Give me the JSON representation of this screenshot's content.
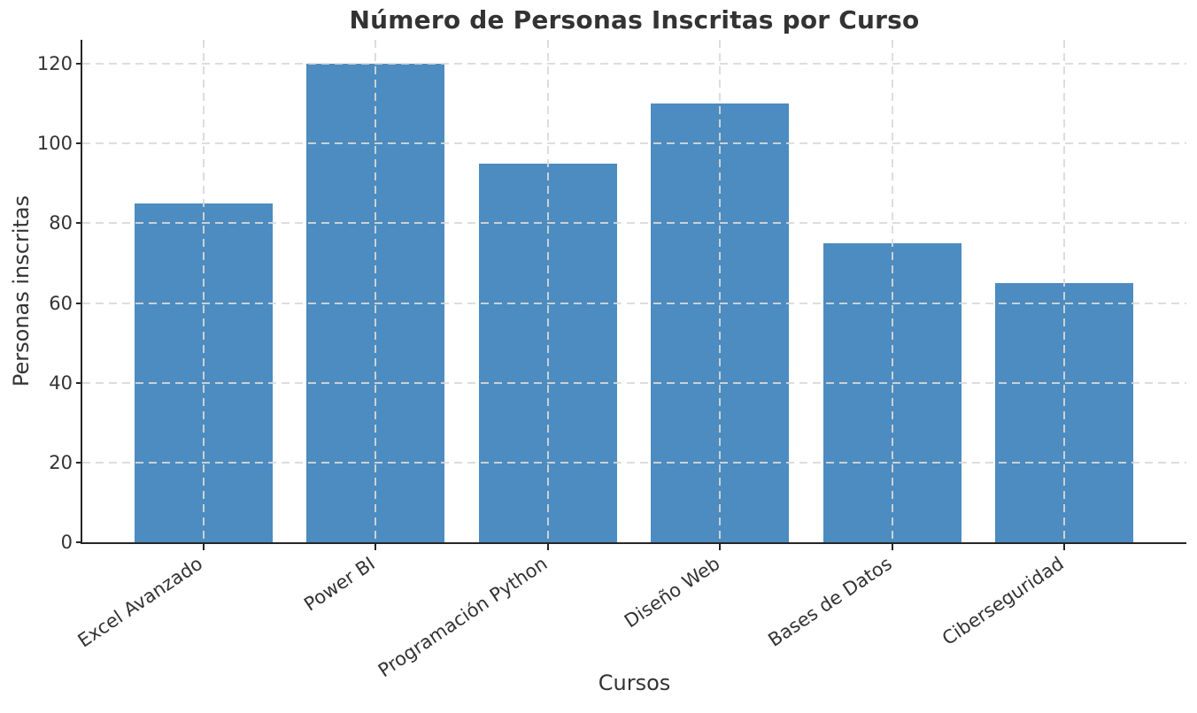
{
  "chart_data": {
    "type": "bar",
    "title": "Número de Personas Inscritas por Curso",
    "xlabel": "Cursos",
    "ylabel": "Personas inscritas",
    "categories": [
      "Excel Avanzado",
      "Power BI",
      "Programación Python",
      "Diseño Web",
      "Bases de Datos",
      "Ciberseguridad"
    ],
    "values": [
      85,
      120,
      95,
      110,
      75,
      65
    ],
    "yticks": [
      0,
      20,
      40,
      60,
      80,
      100,
      120
    ],
    "ylim": [
      0,
      126
    ],
    "grid": "dashed",
    "legend": "none",
    "colors": {
      "bar": "#4c8cc0",
      "axis": "#262626",
      "grid": "#d9d9d9",
      "text": "#333333",
      "background": "#ffffff"
    }
  }
}
